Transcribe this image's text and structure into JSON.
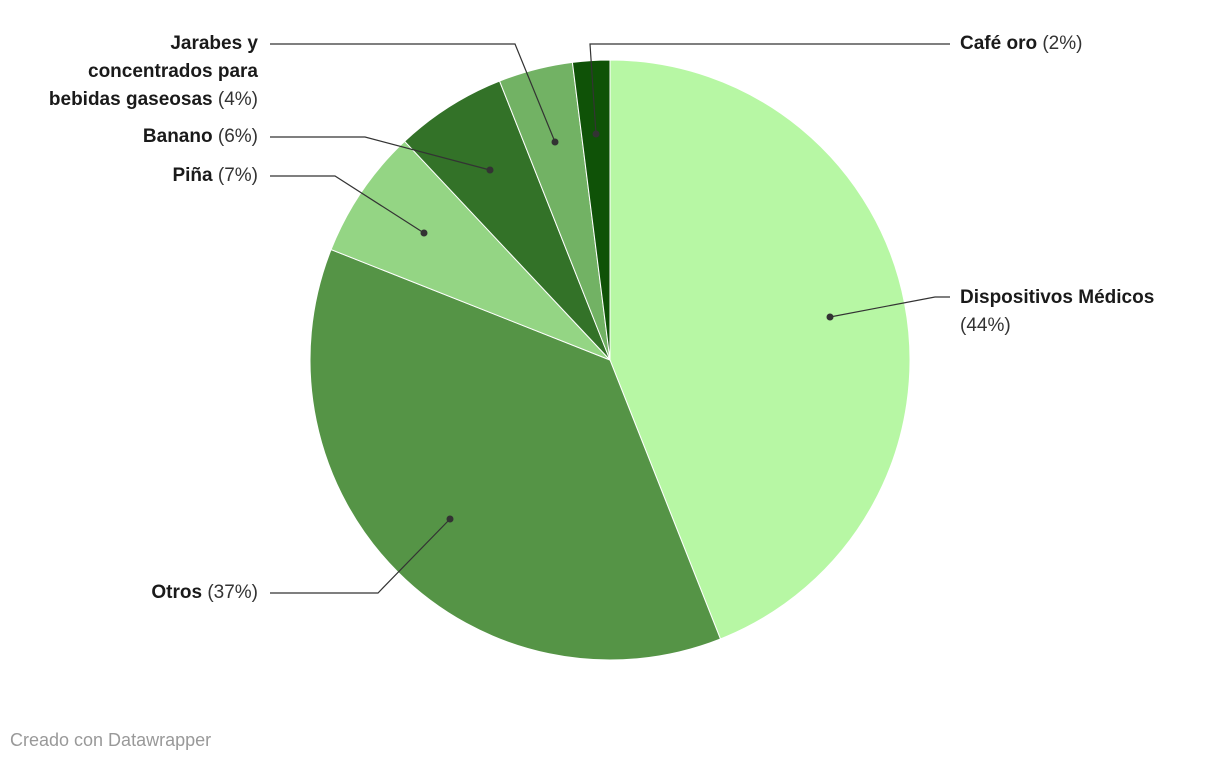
{
  "chart_data": {
    "type": "pie",
    "categories": [
      "Dispositivos Médicos",
      "Otros",
      "Piña",
      "Banano",
      "Jarabes y concentrados para bebidas gaseosas",
      "Café oro"
    ],
    "values": [
      44,
      37,
      7,
      6,
      4,
      2
    ],
    "value_labels": [
      "(44%)",
      "(37%)",
      "(7%)",
      "(6%)",
      "(4%)",
      "(2%)"
    ],
    "colors": [
      "#b7f7a4",
      "#559446",
      "#94d584",
      "#337228",
      "#72b264",
      "#0f5207"
    ],
    "credit": "Creado con Datawrapper"
  }
}
